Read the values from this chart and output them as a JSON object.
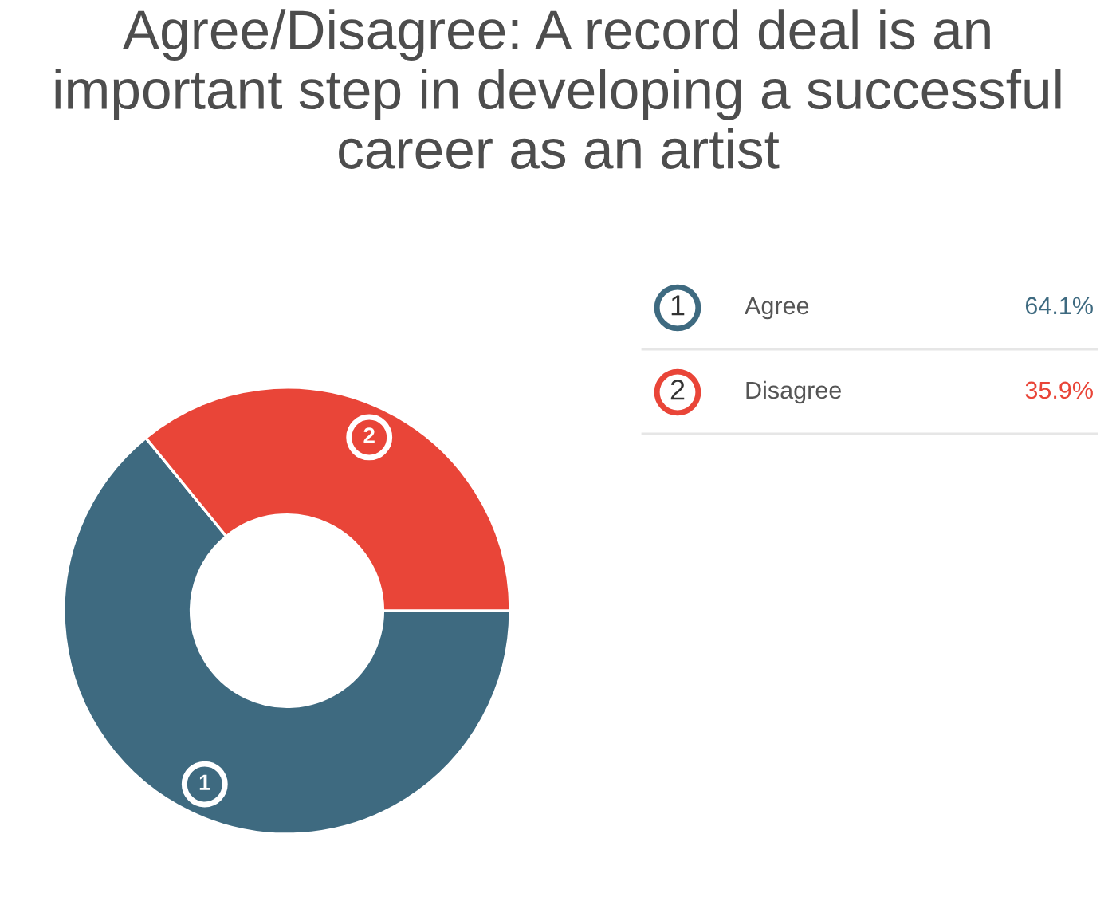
{
  "chart_data": {
    "type": "donut",
    "title": "Agree/Disagree: A record deal is an important step in developing a successful career as an artist",
    "categories": [
      "Agree",
      "Disagree"
    ],
    "values": [
      64.1,
      35.9
    ],
    "value_labels": [
      "64.1%",
      "35.9%"
    ],
    "colors": [
      "#3e6a80",
      "#e94538"
    ],
    "annotations": [
      {
        "text": "1",
        "x": "Agree"
      },
      {
        "text": "2",
        "x": "Disagree"
      }
    ],
    "legend": "right"
  }
}
